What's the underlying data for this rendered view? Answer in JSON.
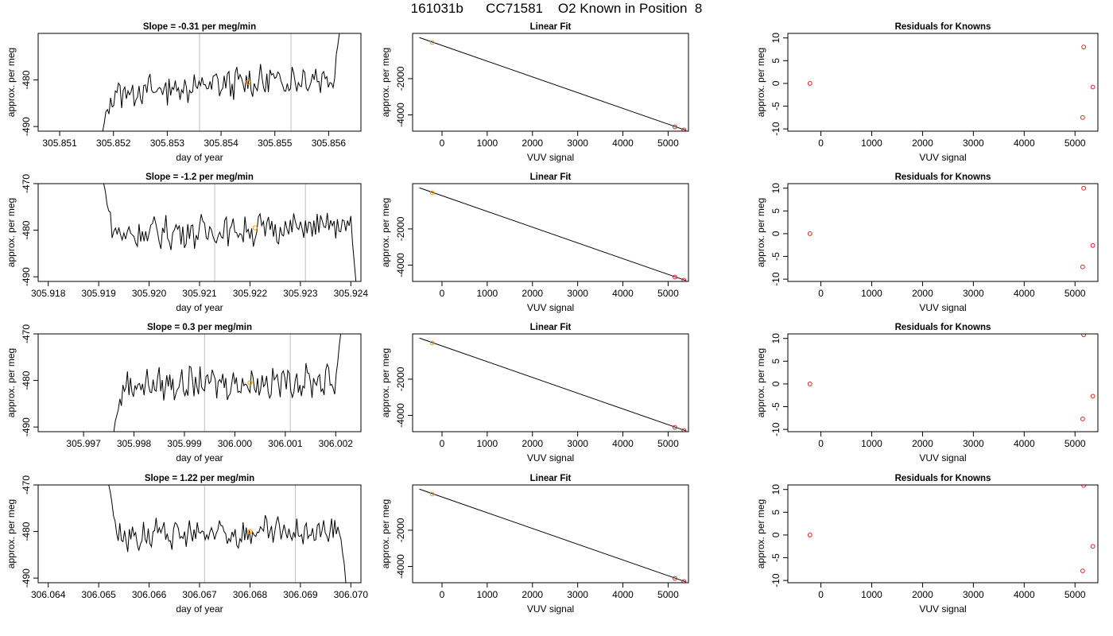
{
  "title": "161031b      CC71581    O2 Known in Position  8",
  "colors": {
    "trace": "#000000",
    "vline": "#c8c8c8",
    "point_orange": "#ff9900",
    "point_red": "#dd2222",
    "fit_line": "#000000"
  },
  "chart_data": [
    {
      "panel": "time-1",
      "type": "line",
      "title": "Slope =  -0.31  per meg/min",
      "xlabel": "day of year",
      "ylabel": "approx. per meg",
      "xlim": [
        305.8506,
        305.8566
      ],
      "ylim": [
        -491,
        -470
      ],
      "xticks": [
        "305.851",
        "305.852",
        "305.853",
        "305.854",
        "305.855",
        "305.856"
      ],
      "xtick_values": [
        305.851,
        305.852,
        305.853,
        305.854,
        305.855,
        305.856
      ],
      "yticks": [
        "-490",
        "-480"
      ],
      "ytick_values": [
        -490,
        -480
      ],
      "vlines": [
        305.8536,
        305.8553
      ],
      "marker": {
        "x": 305.8545,
        "y": -480.5
      },
      "trace": {
        "x_start": 305.8518,
        "x_end": 305.8562,
        "y_first": -491,
        "y_last": -470,
        "baseline_start": -483,
        "baseline_end": -479,
        "rise_x": 305.8561
      }
    },
    {
      "panel": "time-2",
      "type": "line",
      "title": "Slope =  -1.2  per meg/min",
      "xlabel": "day of year",
      "ylabel": "approx. per meg",
      "xlim": [
        305.9178,
        305.9242
      ],
      "ylim": [
        -491,
        -470
      ],
      "xticks": [
        "305.918",
        "305.919",
        "305.920",
        "305.921",
        "305.922",
        "305.923",
        "305.924"
      ],
      "xtick_values": [
        305.918,
        305.919,
        305.92,
        305.921,
        305.922,
        305.923,
        305.924
      ],
      "yticks": [
        "-490",
        "-480",
        "-470"
      ],
      "ytick_values": [
        -490,
        -480,
        -470
      ],
      "vlines": [
        305.9213,
        305.9231
      ],
      "marker": {
        "x": 305.9221,
        "y": -479.5
      },
      "trace": {
        "x_start": 305.9191,
        "x_end": 305.9241,
        "y_first": -470,
        "y_last": -491,
        "baseline_start": -481,
        "baseline_end": -479,
        "rise_x": 305.924
      }
    },
    {
      "panel": "time-3",
      "type": "line",
      "title": "Slope =  0.3  per meg/min",
      "xlabel": "day of year",
      "ylabel": "approx. per meg",
      "xlim": [
        305.9961,
        306.0025
      ],
      "ylim": [
        -491,
        -470
      ],
      "xticks": [
        "305.997",
        "305.998",
        "305.999",
        "306.000",
        "306.001",
        "306.002"
      ],
      "xtick_values": [
        305.997,
        305.998,
        305.999,
        306.0,
        306.001,
        306.002
      ],
      "yticks": [
        "-490",
        "-480",
        "-470"
      ],
      "ytick_values": [
        -490,
        -480,
        -470
      ],
      "vlines": [
        305.9994,
        306.0011
      ],
      "marker": {
        "x": 306.0003,
        "y": -480.5
      },
      "trace": {
        "x_start": 305.9976,
        "x_end": 306.0021,
        "y_first": -491,
        "y_last": -470,
        "baseline_start": -481,
        "baseline_end": -480,
        "rise_x": 306.002
      }
    },
    {
      "panel": "time-4",
      "type": "line",
      "title": "Slope =  1.22  per meg/min",
      "xlabel": "day of year",
      "ylabel": "approx. per meg",
      "xlim": [
        306.0638,
        306.0702
      ],
      "ylim": [
        -491,
        -470
      ],
      "xticks": [
        "306.064",
        "306.065",
        "306.066",
        "306.067",
        "306.068",
        "306.069",
        "306.070"
      ],
      "xtick_values": [
        306.064,
        306.065,
        306.066,
        306.067,
        306.068,
        306.069,
        306.07
      ],
      "yticks": [
        "-490",
        "-480",
        "-470"
      ],
      "ytick_values": [
        -490,
        -480,
        -470
      ],
      "vlines": [
        306.0671,
        306.0689
      ],
      "marker": {
        "x": 306.068,
        "y": -480
      },
      "trace": {
        "x_start": 306.0652,
        "x_end": 306.0699,
        "y_first": -470,
        "y_last": -491,
        "baseline_start": -481,
        "baseline_end": -480,
        "rise_x": 306.0698
      }
    },
    {
      "panel": "fit-1",
      "type": "scatter",
      "title": "Linear Fit",
      "xlabel": "VUV signal",
      "ylabel": "approx. per meg",
      "xlim": [
        -650,
        5450
      ],
      "ylim": [
        -4900,
        500
      ],
      "xticks": [
        "0",
        "1000",
        "2000",
        "3000",
        "4000",
        "5000"
      ],
      "xtick_values": [
        0,
        1000,
        2000,
        3000,
        4000,
        5000
      ],
      "yticks": [
        "-4000",
        "-2000"
      ],
      "ytick_values": [
        -4000,
        -2000
      ],
      "line": [
        [
          -500,
          270
        ],
        [
          5400,
          -4860
        ]
      ],
      "points": [
        {
          "x": -215,
          "y": 0,
          "color": "orange"
        },
        {
          "x": 5150,
          "y": -4660,
          "color": "red"
        },
        {
          "x": 5350,
          "y": -4830,
          "color": "red"
        }
      ]
    },
    {
      "panel": "fit-2",
      "type": "scatter",
      "title": "Linear Fit",
      "xlabel": "VUV signal",
      "ylabel": "approx. per meg",
      "xlim": [
        -650,
        5450
      ],
      "ylim": [
        -4900,
        500
      ],
      "xticks": [
        "0",
        "1000",
        "2000",
        "3000",
        "4000",
        "5000"
      ],
      "xtick_values": [
        0,
        1000,
        2000,
        3000,
        4000,
        5000
      ],
      "yticks": [
        "-4000",
        "-2000"
      ],
      "ytick_values": [
        -4000,
        -2000
      ],
      "line": [
        [
          -500,
          270
        ],
        [
          5400,
          -4860
        ]
      ],
      "points": [
        {
          "x": -215,
          "y": 0,
          "color": "orange"
        },
        {
          "x": 5150,
          "y": -4660,
          "color": "red"
        },
        {
          "x": 5350,
          "y": -4830,
          "color": "red"
        }
      ]
    },
    {
      "panel": "fit-3",
      "type": "scatter",
      "title": "Linear Fit",
      "xlabel": "VUV signal",
      "ylabel": "approx. per meg",
      "xlim": [
        -650,
        5450
      ],
      "ylim": [
        -4900,
        500
      ],
      "xticks": [
        "0",
        "1000",
        "2000",
        "3000",
        "4000",
        "5000"
      ],
      "xtick_values": [
        0,
        1000,
        2000,
        3000,
        4000,
        5000
      ],
      "yticks": [
        "-4000",
        "-2000"
      ],
      "ytick_values": [
        -4000,
        -2000
      ],
      "line": [
        [
          -500,
          270
        ],
        [
          5400,
          -4860
        ]
      ],
      "points": [
        {
          "x": -215,
          "y": 0,
          "color": "orange"
        },
        {
          "x": 5150,
          "y": -4660,
          "color": "red"
        },
        {
          "x": 5350,
          "y": -4830,
          "color": "red"
        }
      ]
    },
    {
      "panel": "fit-4",
      "type": "scatter",
      "title": "Linear Fit",
      "xlabel": "VUV signal",
      "ylabel": "approx. per meg",
      "xlim": [
        -650,
        5450
      ],
      "ylim": [
        -4900,
        500
      ],
      "xticks": [
        "0",
        "1000",
        "2000",
        "3000",
        "4000",
        "5000"
      ],
      "xtick_values": [
        0,
        1000,
        2000,
        3000,
        4000,
        5000
      ],
      "yticks": [
        "-4000",
        "-2000"
      ],
      "ytick_values": [
        -4000,
        -2000
      ],
      "line": [
        [
          -500,
          270
        ],
        [
          5400,
          -4860
        ]
      ],
      "points": [
        {
          "x": -215,
          "y": 0,
          "color": "orange"
        },
        {
          "x": 5150,
          "y": -4660,
          "color": "red"
        },
        {
          "x": 5350,
          "y": -4830,
          "color": "red"
        }
      ]
    },
    {
      "panel": "resid-1",
      "type": "scatter",
      "title": "Residuals for Knowns",
      "xlabel": "VUV signal",
      "ylabel": "approx. per meg",
      "xlim": [
        -650,
        5450
      ],
      "ylim": [
        -10.5,
        11
      ],
      "xticks": [
        "0",
        "1000",
        "2000",
        "3000",
        "4000",
        "5000"
      ],
      "xtick_values": [
        0,
        1000,
        2000,
        3000,
        4000,
        5000
      ],
      "yticks": [
        "-10",
        "-5",
        "0",
        "5",
        "10"
      ],
      "ytick_values": [
        -10,
        -5,
        0,
        5,
        10
      ],
      "points": [
        {
          "x": -215,
          "y": 0
        },
        {
          "x": 5170,
          "y": 8
        },
        {
          "x": 5150,
          "y": -7.5
        },
        {
          "x": 5350,
          "y": -0.8
        }
      ]
    },
    {
      "panel": "resid-2",
      "type": "scatter",
      "title": "Residuals for Knowns",
      "xlabel": "VUV signal",
      "ylabel": "approx. per meg",
      "xlim": [
        -650,
        5450
      ],
      "ylim": [
        -10.5,
        11
      ],
      "xticks": [
        "0",
        "1000",
        "2000",
        "3000",
        "4000",
        "5000"
      ],
      "xtick_values": [
        0,
        1000,
        2000,
        3000,
        4000,
        5000
      ],
      "yticks": [
        "-10",
        "-5",
        "0",
        "5",
        "10"
      ],
      "ytick_values": [
        -10,
        -5,
        0,
        5,
        10
      ],
      "points": [
        {
          "x": -215,
          "y": 0
        },
        {
          "x": 5170,
          "y": 10
        },
        {
          "x": 5150,
          "y": -7.3
        },
        {
          "x": 5350,
          "y": -2.6
        }
      ]
    },
    {
      "panel": "resid-3",
      "type": "scatter",
      "title": "Residuals for Knowns",
      "xlabel": "VUV signal",
      "ylabel": "approx. per meg",
      "xlim": [
        -650,
        5450
      ],
      "ylim": [
        -10.5,
        11
      ],
      "xticks": [
        "0",
        "1000",
        "2000",
        "3000",
        "4000",
        "5000"
      ],
      "xtick_values": [
        0,
        1000,
        2000,
        3000,
        4000,
        5000
      ],
      "yticks": [
        "-10",
        "-5",
        "0",
        "5",
        "10"
      ],
      "ytick_values": [
        -10,
        -5,
        0,
        5,
        10
      ],
      "points": [
        {
          "x": -215,
          "y": 0
        },
        {
          "x": 5170,
          "y": 10.8
        },
        {
          "x": 5150,
          "y": -7.7
        },
        {
          "x": 5350,
          "y": -2.7
        }
      ]
    },
    {
      "panel": "resid-4",
      "type": "scatter",
      "title": "Residuals for Knowns",
      "xlabel": "VUV signal",
      "ylabel": "approx. per meg",
      "xlim": [
        -650,
        5450
      ],
      "ylim": [
        -10.5,
        11
      ],
      "xticks": [
        "0",
        "1000",
        "2000",
        "3000",
        "4000",
        "5000"
      ],
      "xtick_values": [
        0,
        1000,
        2000,
        3000,
        4000,
        5000
      ],
      "yticks": [
        "-10",
        "-5",
        "0",
        "5",
        "10"
      ],
      "ytick_values": [
        -10,
        -5,
        0,
        5,
        10
      ],
      "points": [
        {
          "x": -215,
          "y": 0
        },
        {
          "x": 5170,
          "y": 10.9
        },
        {
          "x": 5150,
          "y": -7.9
        },
        {
          "x": 5350,
          "y": -2.5
        }
      ]
    }
  ]
}
